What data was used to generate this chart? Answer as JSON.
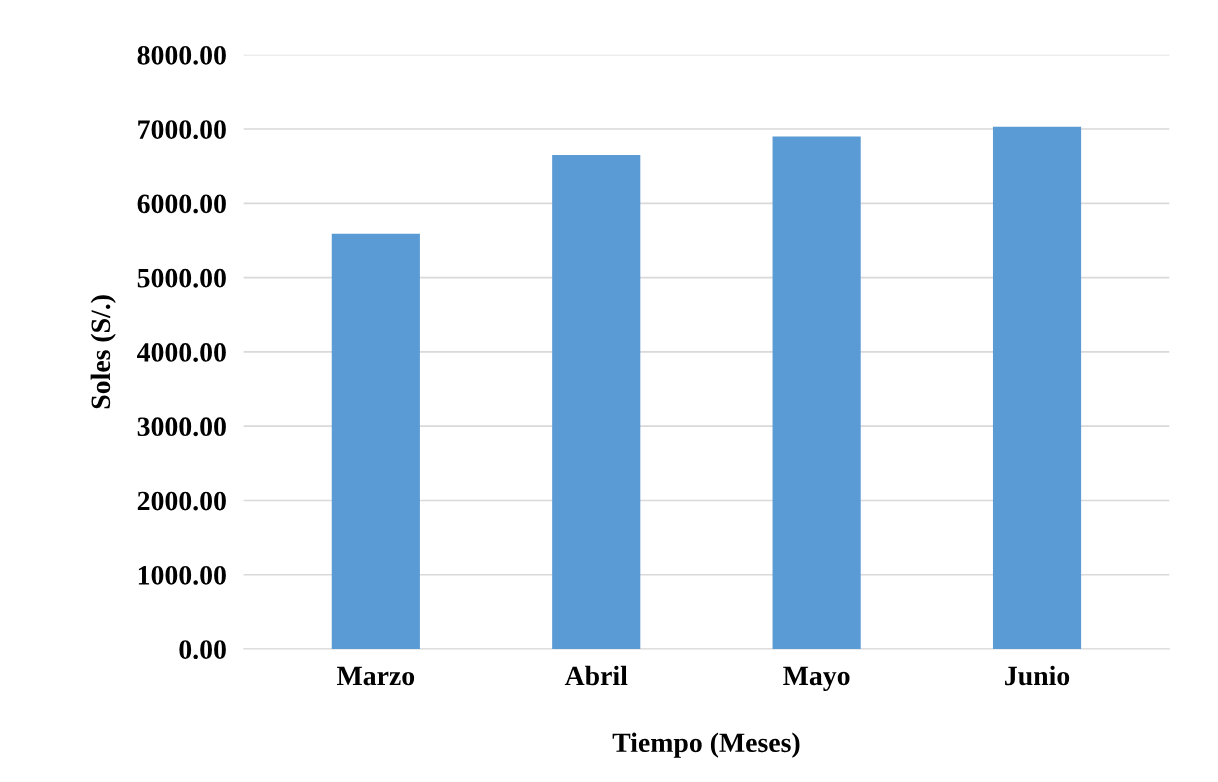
{
  "chart_data": {
    "type": "bar",
    "xlabel": "Tiempo (Meses)",
    "ylabel": "Soles (S/.)",
    "categories": [
      "Marzo",
      "Abril",
      "Mayo",
      "Junio"
    ],
    "values": [
      5590,
      6650,
      6900,
      7030
    ],
    "color": "#5b9bd5",
    "ylim": [
      0,
      8000
    ],
    "yticks": [
      {
        "value": 0,
        "label": "0.00"
      },
      {
        "value": 1000,
        "label": "1000.00"
      },
      {
        "value": 2000,
        "label": "2000.00"
      },
      {
        "value": 3000,
        "label": "3000.00"
      },
      {
        "value": 4000,
        "label": "4000.00"
      },
      {
        "value": 5000,
        "label": "5000.00"
      },
      {
        "value": 6000,
        "label": "6000.00"
      },
      {
        "value": 7000,
        "label": "7000.00"
      },
      {
        "value": 8000,
        "label": "8000.00"
      }
    ],
    "grid": "y"
  }
}
